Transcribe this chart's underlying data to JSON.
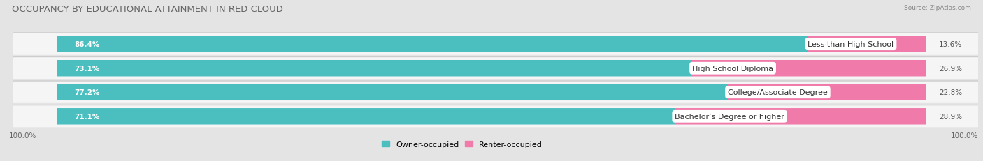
{
  "title": "OCCUPANCY BY EDUCATIONAL ATTAINMENT IN RED CLOUD",
  "source": "Source: ZipAtlas.com",
  "categories": [
    "Less than High School",
    "High School Diploma",
    "College/Associate Degree",
    "Bachelor’s Degree or higher"
  ],
  "owner_values": [
    86.4,
    73.1,
    77.2,
    71.1
  ],
  "renter_values": [
    13.6,
    26.9,
    22.8,
    28.9
  ],
  "owner_color": "#4bbfc0",
  "renter_color": "#f07aaa",
  "bg_color": "#e4e4e4",
  "row_bg_color": "#f5f5f5",
  "row_shadow_color": "#cccccc",
  "title_fontsize": 9.5,
  "label_fontsize": 8.0,
  "value_fontsize": 7.5,
  "legend_fontsize": 8.0,
  "axis_label_fontsize": 7.5,
  "left_axis_label": "100.0%",
  "right_axis_label": "100.0%",
  "bar_total": 100,
  "xlim_left": -5,
  "xlim_right": 105
}
